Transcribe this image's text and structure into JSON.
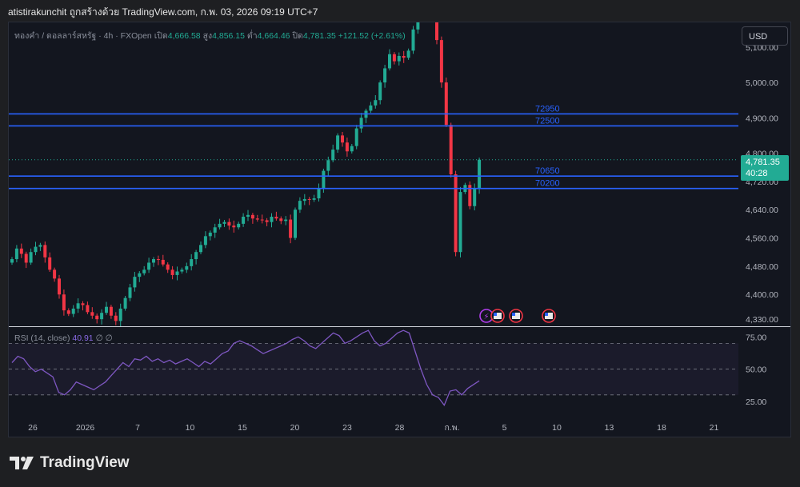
{
  "header": {
    "attribution": "atistirakunchit ถูกสร้างด้วย TradingView.com, ก.พ. 03, 2026 09:19 UTC+7"
  },
  "toolbar": {
    "currency": "USD"
  },
  "legend": {
    "symbol": "ทองคำ / ดอลลาร์สหรัฐ · 4h · FXOpen",
    "open_label": "เปิด",
    "open": "4,666.58",
    "high_label": "สูง",
    "high": "4,856.15",
    "low_label": "ต่ำ",
    "low": "4,664.46",
    "close_label": "ปิด",
    "close": "4,781.35",
    "change": "+121.52 (+2.61%)"
  },
  "price_tag": {
    "price": "4,781.35",
    "countdown": "40:28"
  },
  "rsi_legend": {
    "label": "RSI (14, close)",
    "value": "40.91",
    "extra": "∅ ∅"
  },
  "footer": {
    "brand": "TradingView"
  },
  "colors": {
    "up": "#22ab94",
    "down": "#f23645",
    "level_line": "#2962ff",
    "rsi_line": "#7e57c2",
    "background": "#13161f"
  },
  "chart_data": [
    {
      "type": "candlestick",
      "title": "ทองคำ / ดอลลาร์สหรัฐ · 4h · FXOpen",
      "ylim": [
        4310,
        5170
      ],
      "y_ticks": [
        "5,100.00",
        "5,000.00",
        "4,900.00",
        "4,800.00",
        "4,720.00",
        "4,640.00",
        "4,560.00",
        "4,480.00",
        "4,400.00",
        "4,330.00"
      ],
      "y_tick_values": [
        5100,
        5000,
        4900,
        4800,
        4720,
        4640,
        4560,
        4480,
        4400,
        4330
      ],
      "x_ticks": [
        "26",
        "2026",
        "7",
        "10",
        "15",
        "20",
        "23",
        "28",
        "ก.พ.",
        "5",
        "10",
        "13",
        "18",
        "21"
      ],
      "close_path": [
        4500,
        4530,
        4515,
        4490,
        4520,
        4535,
        4540,
        4505,
        4470,
        4445,
        4400,
        4355,
        4345,
        4360,
        4375,
        4370,
        4350,
        4340,
        4330,
        4348,
        4365,
        4340,
        4325,
        4360,
        4390,
        4420,
        4450,
        4460,
        4470,
        4490,
        4500,
        4498,
        4485,
        4470,
        4455,
        4465,
        4470,
        4480,
        4500,
        4520,
        4540,
        4565,
        4575,
        4590,
        4600,
        4605,
        4595,
        4590,
        4600,
        4620,
        4625,
        4615,
        4612,
        4610,
        4605,
        4620,
        4615,
        4608,
        4612,
        4560,
        4640,
        4665,
        4670,
        4668,
        4672,
        4700,
        4750,
        4780,
        4810,
        4850,
        4830,
        4805,
        4820,
        4870,
        4900,
        4920,
        4935,
        4950,
        5000,
        5040,
        5080,
        5060,
        5075,
        5070,
        5090,
        5150,
        5200,
        5250,
        5260,
        5180,
        5120,
        5000,
        4880,
        4740,
        4520,
        4690,
        4710,
        4650,
        4700,
        4781.35
      ],
      "horizontal_levels": [
        {
          "label": "72950",
          "value": 4911
        },
        {
          "label": "72500",
          "value": 4877
        },
        {
          "label": "70650",
          "value": 4735
        },
        {
          "label": "70200",
          "value": 4700
        }
      ],
      "last_price": 4781.35,
      "events": [
        "lightning",
        "us-flag",
        "us-flag",
        "us-flag"
      ]
    },
    {
      "type": "line",
      "title": "RSI (14, close)",
      "ylim": [
        15,
        82
      ],
      "y_ticks": [
        "75.00",
        "50.00",
        "25.00"
      ],
      "y_tick_values": [
        75,
        50,
        25
      ],
      "bands": {
        "upper": 70,
        "middle": 50,
        "lower": 30
      },
      "values": [
        55,
        60,
        58,
        52,
        48,
        50,
        47,
        44,
        32,
        30,
        34,
        40,
        38,
        36,
        34,
        37,
        40,
        45,
        50,
        55,
        52,
        58,
        57,
        60,
        56,
        58,
        55,
        57,
        54,
        56,
        58,
        55,
        52,
        56,
        54,
        58,
        62,
        64,
        70,
        72,
        70,
        68,
        65,
        62,
        64,
        66,
        68,
        70,
        73,
        75,
        72,
        68,
        66,
        70,
        74,
        78,
        76,
        70,
        72,
        75,
        78,
        80,
        72,
        68,
        70,
        74,
        78,
        80,
        78,
        64,
        50,
        38,
        30,
        28,
        22,
        33,
        34,
        30,
        35,
        38,
        40.91
      ],
      "last_value": 40.91
    }
  ]
}
